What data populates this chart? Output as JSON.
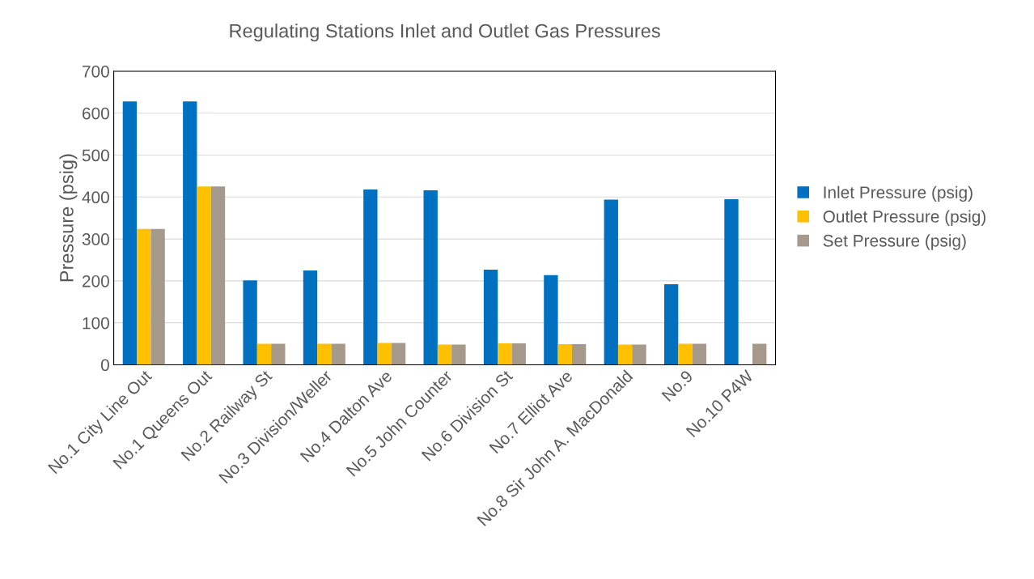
{
  "chart_data": {
    "type": "bar",
    "title": "Regulating Stations Inlet and Outlet Gas Pressures",
    "ylabel": "Pressure (psig)",
    "categories": [
      "No.1 City Line Out",
      "No.1 Queens Out",
      "No.2 Railway St",
      "No.3 Division/Weller",
      "No.4 Dalton Ave",
      "No.5 John Counter",
      "No.6 Division St",
      "No.7 Elliot Ave",
      "No.8 Sir John A. MacDonald",
      "No.9",
      "No.10 P4W"
    ],
    "series": [
      {
        "name": "Inlet Pressure (psig)",
        "color": "#0070c0",
        "values": [
          628,
          628,
          201,
          225,
          418,
          416,
          227,
          214,
          394,
          192,
          395
        ]
      },
      {
        "name": "Outlet Pressure (psig)",
        "color": "#ffc000",
        "values": [
          324,
          425,
          50,
          50,
          52,
          48,
          51,
          49,
          48,
          50,
          null
        ]
      },
      {
        "name": "Set Pressure (psig)",
        "color": "#a5998c",
        "values": [
          324,
          425,
          50,
          50,
          52,
          48,
          51,
          49,
          48,
          50,
          50
        ]
      }
    ],
    "ylim": [
      0,
      700
    ],
    "yticks": [
      0,
      100,
      200,
      300,
      400,
      500,
      600,
      700
    ],
    "grid": "y",
    "legend": "right"
  }
}
